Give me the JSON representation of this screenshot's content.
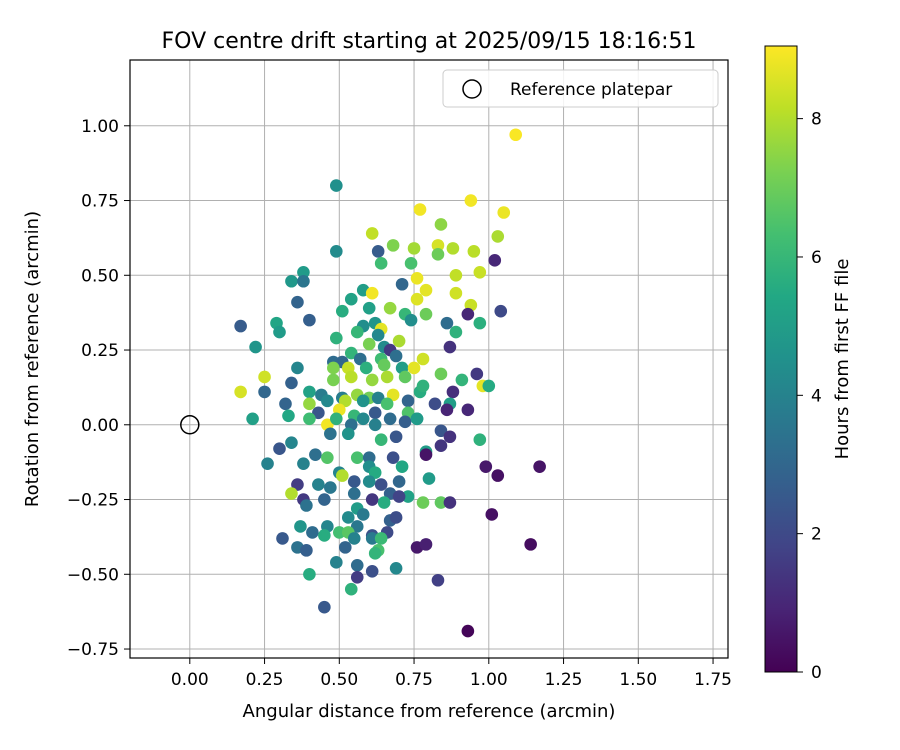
{
  "chart_data": {
    "type": "scatter",
    "title": "FOV centre drift starting at 2025/09/15 18:16:51",
    "xlabel": "Angular distance from reference (arcmin)",
    "ylabel": "Rotation from reference (arcmin)",
    "colorbar_label": "Hours from first FF file",
    "colormap": "viridis",
    "xlim": [
      -0.2,
      1.8
    ],
    "ylim": [
      -0.78,
      1.22
    ],
    "clim": [
      0,
      9.05
    ],
    "x_ticks": [
      0.0,
      0.25,
      0.5,
      0.75,
      1.0,
      1.25,
      1.5,
      1.75
    ],
    "x_tick_labels": [
      "0.00",
      "0.25",
      "0.50",
      "0.75",
      "1.00",
      "1.25",
      "1.50",
      "1.75"
    ],
    "y_ticks": [
      -0.75,
      -0.5,
      -0.25,
      0.0,
      0.25,
      0.5,
      0.75,
      1.0
    ],
    "y_tick_labels": [
      "−0.75",
      "−0.50",
      "−0.25",
      "0.00",
      "0.25",
      "0.50",
      "0.75",
      "1.00"
    ],
    "colorbar_ticks": [
      0,
      2,
      4,
      6,
      8
    ],
    "colorbar_tick_labels": [
      "0",
      "2",
      "4",
      "6",
      "8"
    ],
    "grid": true,
    "legend_position": "top-right",
    "legend": [
      {
        "label": "Reference platepar",
        "marker": "open-circle"
      }
    ],
    "reference_point": {
      "x": 0.0,
      "y": 0.0
    },
    "points": [
      [
        1.09,
        0.97,
        9.0
      ],
      [
        0.94,
        0.75,
        8.9
      ],
      [
        1.05,
        0.71,
        8.8
      ],
      [
        0.77,
        0.72,
        8.9
      ],
      [
        0.84,
        0.67,
        7.5
      ],
      [
        0.61,
        0.64,
        8.2
      ],
      [
        1.03,
        0.63,
        7.9
      ],
      [
        0.83,
        0.6,
        8.5
      ],
      [
        0.88,
        0.59,
        8.0
      ],
      [
        0.75,
        0.59,
        7.8
      ],
      [
        0.68,
        0.6,
        7.3
      ],
      [
        0.95,
        0.58,
        8.1
      ],
      [
        0.63,
        0.58,
        2.6
      ],
      [
        0.49,
        0.58,
        4.3
      ],
      [
        0.83,
        0.57,
        7.0
      ],
      [
        0.74,
        0.54,
        6.4
      ],
      [
        0.64,
        0.54,
        6.2
      ],
      [
        1.02,
        0.55,
        1.0
      ],
      [
        0.38,
        0.51,
        4.9
      ],
      [
        0.89,
        0.5,
        8.2
      ],
      [
        0.97,
        0.51,
        8.3
      ],
      [
        0.76,
        0.49,
        8.8
      ],
      [
        0.34,
        0.48,
        4.8
      ],
      [
        0.38,
        0.48,
        3.5
      ],
      [
        0.58,
        0.45,
        5.0
      ],
      [
        0.71,
        0.47,
        3.0
      ],
      [
        0.79,
        0.45,
        8.7
      ],
      [
        0.89,
        0.44,
        8.4
      ],
      [
        0.61,
        0.44,
        8.9
      ],
      [
        0.54,
        0.42,
        5.2
      ],
      [
        0.76,
        0.42,
        8.6
      ],
      [
        0.36,
        0.41,
        2.9
      ],
      [
        0.94,
        0.4,
        8.3
      ],
      [
        0.72,
        0.37,
        6.0
      ],
      [
        1.04,
        0.38,
        2.0
      ],
      [
        0.67,
        0.39,
        7.6
      ],
      [
        0.51,
        0.38,
        5.6
      ],
      [
        0.6,
        0.39,
        5.1
      ],
      [
        0.79,
        0.37,
        7.0
      ],
      [
        0.17,
        0.33,
        2.6
      ],
      [
        0.4,
        0.35,
        2.7
      ],
      [
        0.58,
        0.33,
        4.4
      ],
      [
        0.62,
        0.34,
        4.7
      ],
      [
        0.64,
        0.32,
        8.7
      ],
      [
        0.86,
        0.34,
        3.2
      ],
      [
        0.93,
        0.37,
        1.0
      ],
      [
        0.29,
        0.34,
        5.3
      ],
      [
        0.3,
        0.31,
        4.9
      ],
      [
        0.49,
        0.29,
        5.8
      ],
      [
        0.56,
        0.31,
        6.0
      ],
      [
        0.63,
        0.3,
        4.2
      ],
      [
        0.74,
        0.35,
        4.4
      ],
      [
        0.89,
        0.31,
        5.8
      ],
      [
        0.97,
        0.34,
        5.7
      ],
      [
        0.22,
        0.26,
        4.7
      ],
      [
        0.6,
        0.27,
        7.2
      ],
      [
        0.65,
        0.26,
        4.3
      ],
      [
        0.7,
        0.28,
        7.9
      ],
      [
        0.87,
        0.26,
        1.3
      ],
      [
        0.54,
        0.24,
        5.9
      ],
      [
        0.67,
        0.25,
        1.5
      ],
      [
        0.57,
        0.22,
        3.3
      ],
      [
        0.64,
        0.22,
        6.2
      ],
      [
        0.69,
        0.23,
        3.3
      ],
      [
        0.78,
        0.22,
        8.4
      ],
      [
        0.48,
        0.21,
        3.2
      ],
      [
        0.51,
        0.21,
        3.0
      ],
      [
        0.48,
        0.19,
        7.3
      ],
      [
        0.53,
        0.19,
        8.3
      ],
      [
        0.59,
        0.19,
        5.7
      ],
      [
        0.65,
        0.2,
        6.9
      ],
      [
        0.71,
        0.19,
        5.0
      ],
      [
        0.75,
        0.19,
        8.7
      ],
      [
        0.36,
        0.19,
        4.1
      ],
      [
        0.25,
        0.16,
        8.4
      ],
      [
        0.48,
        0.15,
        7.2
      ],
      [
        0.54,
        0.16,
        8.1
      ],
      [
        0.61,
        0.15,
        7.6
      ],
      [
        0.66,
        0.16,
        7.9
      ],
      [
        0.72,
        0.16,
        6.8
      ],
      [
        0.84,
        0.17,
        7.0
      ],
      [
        0.91,
        0.15,
        5.9
      ],
      [
        0.96,
        0.17,
        1.5
      ],
      [
        0.98,
        0.13,
        8.7
      ],
      [
        1.0,
        0.13,
        5.5
      ],
      [
        0.17,
        0.11,
        8.5
      ],
      [
        0.25,
        0.11,
        3.0
      ],
      [
        0.34,
        0.14,
        2.8
      ],
      [
        0.4,
        0.11,
        5.2
      ],
      [
        0.44,
        0.1,
        3.8
      ],
      [
        0.51,
        0.09,
        3.8
      ],
      [
        0.56,
        0.1,
        7.6
      ],
      [
        0.6,
        0.09,
        7.1
      ],
      [
        0.63,
        0.09,
        3.9
      ],
      [
        0.68,
        0.1,
        8.7
      ],
      [
        0.77,
        0.11,
        5.6
      ],
      [
        0.78,
        0.13,
        5.8
      ],
      [
        0.88,
        0.11,
        1.2
      ],
      [
        0.4,
        0.07,
        7.6
      ],
      [
        0.46,
        0.08,
        4.2
      ],
      [
        0.52,
        0.08,
        8.0
      ],
      [
        0.58,
        0.08,
        4.6
      ],
      [
        0.66,
        0.07,
        6.4
      ],
      [
        0.73,
        0.08,
        2.9
      ],
      [
        0.82,
        0.07,
        2.1
      ],
      [
        0.87,
        0.07,
        5.0
      ],
      [
        0.32,
        0.07,
        2.9
      ],
      [
        0.43,
        0.04,
        2.4
      ],
      [
        0.5,
        0.05,
        8.8
      ],
      [
        0.55,
        0.03,
        6.0
      ],
      [
        0.62,
        0.04,
        2.5
      ],
      [
        0.73,
        0.04,
        6.5
      ],
      [
        0.76,
        0.02,
        4.5
      ],
      [
        0.86,
        0.05,
        0.9
      ],
      [
        0.93,
        0.05,
        1.0
      ],
      [
        0.21,
        0.02,
        5.1
      ],
      [
        0.33,
        0.03,
        5.4
      ],
      [
        0.4,
        0.02,
        6.2
      ],
      [
        0.46,
        0.0,
        8.9
      ],
      [
        0.49,
        0.02,
        5.8
      ],
      [
        0.54,
        0.0,
        3.3
      ],
      [
        0.58,
        0.02,
        4.2
      ],
      [
        0.62,
        0.0,
        3.9
      ],
      [
        0.67,
        0.02,
        3.2
      ],
      [
        0.72,
        0.01,
        2.7
      ],
      [
        0.76,
        0.02,
        4.9
      ],
      [
        0.84,
        -0.02,
        2.4
      ],
      [
        0.47,
        -0.03,
        3.4
      ],
      [
        0.53,
        -0.03,
        4.6
      ],
      [
        0.69,
        -0.04,
        2.4
      ],
      [
        0.64,
        -0.05,
        6.0
      ],
      [
        0.87,
        -0.04,
        1.3
      ],
      [
        0.97,
        -0.05,
        5.8
      ],
      [
        0.34,
        -0.06,
        4.1
      ],
      [
        0.3,
        -0.08,
        2.4
      ],
      [
        0.79,
        -0.09,
        5.0
      ],
      [
        0.79,
        -0.1,
        0.5
      ],
      [
        0.84,
        -0.07,
        1.4
      ],
      [
        0.42,
        -0.1,
        3.3
      ],
      [
        0.46,
        -0.11,
        6.6
      ],
      [
        0.56,
        -0.11,
        6.4
      ],
      [
        0.6,
        -0.11,
        3.2
      ],
      [
        0.68,
        -0.11,
        2.2
      ],
      [
        0.71,
        -0.14,
        5.4
      ],
      [
        0.38,
        -0.13,
        4.0
      ],
      [
        0.6,
        -0.14,
        4.4
      ],
      [
        0.26,
        -0.13,
        4.0
      ],
      [
        0.99,
        -0.14,
        0.6
      ],
      [
        1.17,
        -0.14,
        0.5
      ],
      [
        0.5,
        -0.16,
        4.1
      ],
      [
        0.51,
        -0.17,
        8.0
      ],
      [
        0.62,
        -0.16,
        5.5
      ],
      [
        0.8,
        -0.18,
        4.9
      ],
      [
        1.03,
        -0.17,
        0.4
      ],
      [
        0.43,
        -0.2,
        4.0
      ],
      [
        0.55,
        -0.19,
        2.5
      ],
      [
        0.6,
        -0.19,
        4.3
      ],
      [
        0.64,
        -0.2,
        2.2
      ],
      [
        0.7,
        -0.19,
        3.0
      ],
      [
        0.47,
        -0.21,
        3.6
      ],
      [
        0.36,
        -0.2,
        1.6
      ],
      [
        0.34,
        -0.23,
        8.0
      ],
      [
        0.45,
        -0.25,
        2.9
      ],
      [
        0.55,
        -0.23,
        3.3
      ],
      [
        0.61,
        -0.25,
        1.4
      ],
      [
        0.67,
        -0.23,
        2.8
      ],
      [
        0.73,
        -0.24,
        5.2
      ],
      [
        0.7,
        -0.24,
        1.8
      ],
      [
        0.38,
        -0.25,
        1.5
      ],
      [
        0.39,
        -0.27,
        3.4
      ],
      [
        0.56,
        -0.28,
        5.0
      ],
      [
        0.65,
        -0.26,
        5.6
      ],
      [
        0.78,
        -0.26,
        7.0
      ],
      [
        0.84,
        -0.26,
        6.8
      ],
      [
        0.87,
        -0.26,
        1.3
      ],
      [
        0.53,
        -0.31,
        4.3
      ],
      [
        0.58,
        -0.3,
        3.7
      ],
      [
        0.67,
        -0.32,
        2.8
      ],
      [
        0.69,
        -0.31,
        2.1
      ],
      [
        1.01,
        -0.3,
        0.4
      ],
      [
        0.37,
        -0.34,
        4.7
      ],
      [
        0.46,
        -0.34,
        4.1
      ],
      [
        0.56,
        -0.34,
        3.6
      ],
      [
        0.61,
        -0.37,
        2.3
      ],
      [
        0.66,
        -0.36,
        2.0
      ],
      [
        0.41,
        -0.36,
        3.2
      ],
      [
        0.5,
        -0.36,
        6.3
      ],
      [
        0.53,
        -0.36,
        6.7
      ],
      [
        0.55,
        -0.38,
        4.0
      ],
      [
        0.61,
        -0.38,
        3.7
      ],
      [
        0.45,
        -0.37,
        5.6
      ],
      [
        0.64,
        -0.38,
        6.1
      ],
      [
        0.31,
        -0.38,
        2.5
      ],
      [
        0.36,
        -0.41,
        3.4
      ],
      [
        0.39,
        -0.42,
        2.7
      ],
      [
        0.52,
        -0.41,
        2.9
      ],
      [
        0.63,
        -0.42,
        6.4
      ],
      [
        0.62,
        -0.43,
        5.9
      ],
      [
        0.76,
        -0.41,
        0.6
      ],
      [
        0.79,
        -0.4,
        0.8
      ],
      [
        1.14,
        -0.4,
        0.3
      ],
      [
        0.49,
        -0.46,
        4.0
      ],
      [
        0.56,
        -0.47,
        3.2
      ],
      [
        0.69,
        -0.48,
        4.2
      ],
      [
        0.4,
        -0.5,
        5.6
      ],
      [
        0.56,
        -0.51,
        1.6
      ],
      [
        0.61,
        -0.49,
        2.2
      ],
      [
        0.83,
        -0.52,
        1.7
      ],
      [
        0.54,
        -0.55,
        5.8
      ],
      [
        0.45,
        -0.61,
        2.5
      ],
      [
        0.93,
        -0.69,
        0.1
      ],
      [
        0.49,
        0.8,
        4.5
      ]
    ]
  }
}
